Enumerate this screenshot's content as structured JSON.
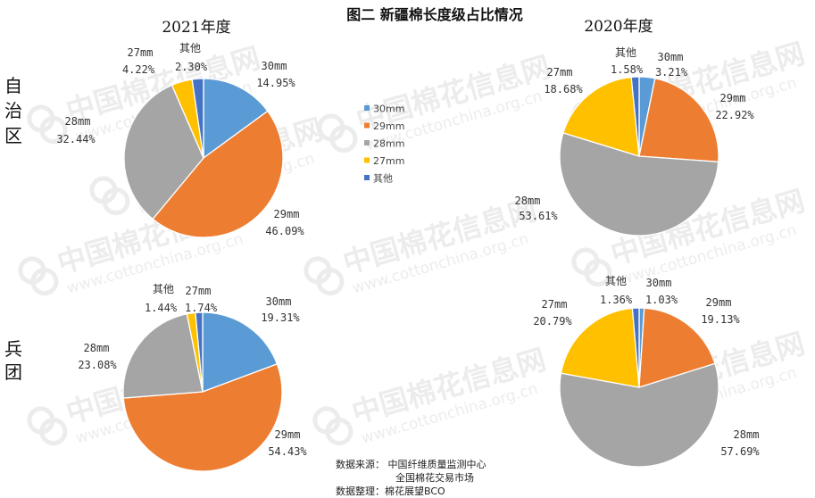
{
  "title": "图二 新疆棉长度级占比情况",
  "years": {
    "y2021": "2021年度",
    "y2020": "2020年度"
  },
  "rows": {
    "autonomous_region": "自治区",
    "corps": "兵团"
  },
  "legend": [
    {
      "label": "30mm",
      "color": "#5B9BD5"
    },
    {
      "label": "29mm",
      "color": "#ED7D31"
    },
    {
      "label": "28mm",
      "color": "#A5A5A5"
    },
    {
      "label": "27mm",
      "color": "#FFC000"
    },
    {
      "label": "其他",
      "color": "#4472C4"
    }
  ],
  "source": {
    "line1": "数据来源： 中国纤维质量监测中心",
    "line2": "全国棉花交易市场",
    "line3": "数据整理：棉花展望BCO"
  },
  "watermark": {
    "brand": "中国棉花信息网",
    "url": "www.cottonchina.org.cn"
  },
  "chart_data": [
    {
      "type": "pie",
      "year": "2021年度",
      "region": "自治区",
      "categories": [
        "30mm",
        "29mm",
        "28mm",
        "27mm",
        "其他"
      ],
      "values": [
        14.95,
        46.09,
        32.44,
        4.22,
        2.3
      ],
      "value_labels": [
        "14.95%",
        "46.09%",
        "32.44%",
        "4.22%",
        "2.30%"
      ]
    },
    {
      "type": "pie",
      "year": "2020年度",
      "region": "自治区",
      "categories": [
        "30mm",
        "29mm",
        "28mm",
        "27mm",
        "其他"
      ],
      "values": [
        3.21,
        22.92,
        53.61,
        18.68,
        1.58
      ],
      "value_labels": [
        "3.21%",
        "22.92%",
        "53.61%",
        "18.68%",
        "1.58%"
      ]
    },
    {
      "type": "pie",
      "year": "2021年度",
      "region": "兵团",
      "categories": [
        "30mm",
        "29mm",
        "28mm",
        "27mm",
        "其他"
      ],
      "values": [
        19.31,
        54.43,
        23.08,
        1.74,
        1.44
      ],
      "value_labels": [
        "19.31%",
        "54.43%",
        "23.08%",
        "1.74%",
        "1.44%"
      ]
    },
    {
      "type": "pie",
      "year": "2020年度",
      "region": "兵团",
      "categories": [
        "30mm",
        "29mm",
        "28mm",
        "27mm",
        "其他"
      ],
      "values": [
        1.03,
        19.13,
        57.69,
        20.79,
        1.36
      ],
      "value_labels": [
        "1.03%",
        "19.13%",
        "57.69%",
        "20.79%",
        "1.36%"
      ]
    }
  ]
}
